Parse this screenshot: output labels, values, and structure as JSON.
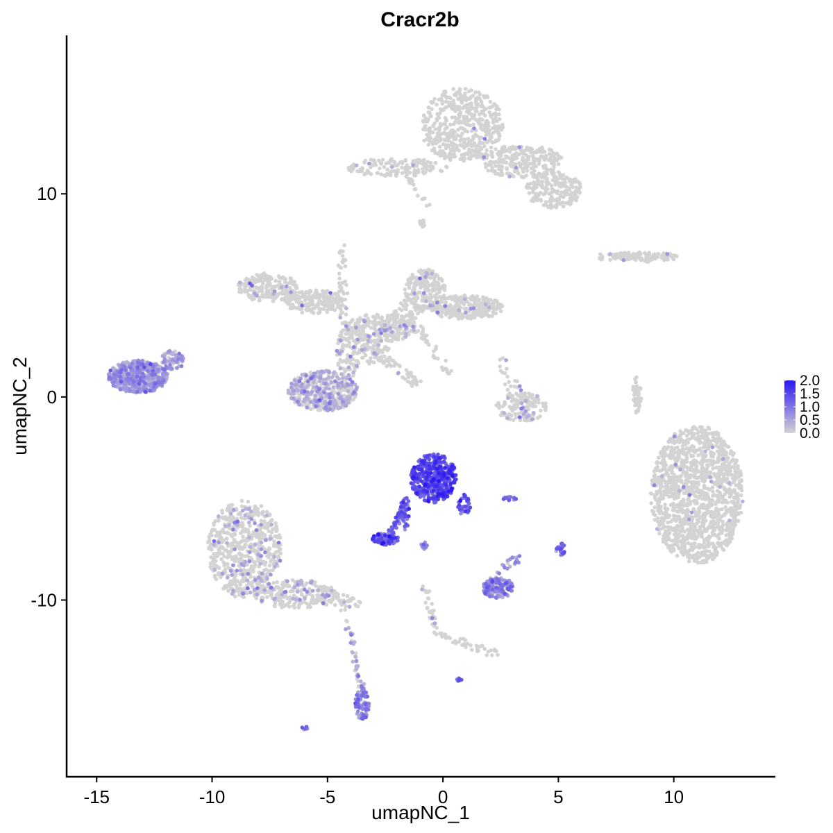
{
  "chart_data": {
    "type": "scatter",
    "title": "Cracr2b",
    "xlabel": "umapNC_1",
    "ylabel": "umapNC_2",
    "xlim": [
      -16.3,
      14.4
    ],
    "ylim": [
      -18.7,
      17.8
    ],
    "xticks": [
      -15,
      -10,
      -5,
      0,
      5,
      10
    ],
    "xtick_labels": [
      "-15",
      "-10",
      "-5",
      "0",
      "5",
      "10"
    ],
    "yticks": [
      -10,
      0,
      10
    ],
    "ytick_labels": [
      "-10",
      "0",
      "10"
    ],
    "grid": false,
    "legend": {
      "position": "right",
      "colors": {
        "low": "#d3d3d3",
        "high": "#2d18f0"
      },
      "range": [
        0,
        2.0
      ],
      "ticks": [
        0,
        0.5,
        1.0,
        1.5,
        2.0
      ],
      "labels": [
        "0.0",
        "0.5",
        "1.0",
        "1.5",
        "2.0"
      ]
    },
    "clusters": [
      {
        "cx": 11.0,
        "cy": -4.8,
        "rx": 2.0,
        "ry": 3.4,
        "n": 1400,
        "expr": 0.0,
        "pos": 0.01
      },
      {
        "cx": 0.8,
        "cy": 13.4,
        "rx": 1.8,
        "ry": 1.8,
        "n": 500,
        "expr": 0.0,
        "pos": 0.01
      },
      {
        "cx": 3.4,
        "cy": 11.6,
        "rx": 1.8,
        "ry": 0.8,
        "n": 260,
        "expr": 0.0,
        "pos": 0.01
      },
      {
        "cx": 4.8,
        "cy": 10.2,
        "rx": 1.2,
        "ry": 0.9,
        "n": 200,
        "expr": 0.0,
        "pos": 0.01
      },
      {
        "cx": -2.0,
        "cy": 11.3,
        "rx": 2.2,
        "ry": 0.45,
        "n": 150,
        "expr": 0.0,
        "pos": 0.02
      },
      {
        "cx": 8.7,
        "cy": 6.9,
        "rx": 1.5,
        "ry": 0.25,
        "n": 80,
        "expr": 0.0,
        "pos": 0.02
      },
      {
        "cx": -7.6,
        "cy": 5.4,
        "rx": 1.3,
        "ry": 0.7,
        "n": 200,
        "expr": 0.0,
        "pos": 0.06
      },
      {
        "cx": -5.6,
        "cy": 4.7,
        "rx": 1.3,
        "ry": 0.6,
        "n": 180,
        "expr": 0.0,
        "pos": 0.05
      },
      {
        "cx": -0.8,
        "cy": 5.3,
        "rx": 0.9,
        "ry": 1.0,
        "n": 200,
        "expr": 0.0,
        "pos": 0.05
      },
      {
        "cx": 1.0,
        "cy": 4.4,
        "rx": 1.6,
        "ry": 0.6,
        "n": 280,
        "expr": 0.0,
        "pos": 0.04
      },
      {
        "cx": -2.7,
        "cy": 3.4,
        "rx": 1.5,
        "ry": 0.7,
        "n": 220,
        "expr": 0.0,
        "pos": 0.06
      },
      {
        "cx": -4.1,
        "cy": 2.2,
        "rx": 0.5,
        "ry": 1.3,
        "n": 120,
        "expr": 0.0,
        "pos": 0.08
      },
      {
        "cx": -5.2,
        "cy": 0.3,
        "rx": 1.5,
        "ry": 1.0,
        "n": 450,
        "expr": 0.35,
        "pos": 0.45
      },
      {
        "cx": -13.2,
        "cy": 1.0,
        "rx": 1.3,
        "ry": 0.8,
        "n": 550,
        "expr": 0.55,
        "pos": 0.8
      },
      {
        "cx": -11.7,
        "cy": 1.8,
        "rx": 0.5,
        "ry": 0.5,
        "n": 60,
        "expr": 0.5,
        "pos": 0.75
      },
      {
        "cx": 3.4,
        "cy": -0.5,
        "rx": 1.1,
        "ry": 0.7,
        "n": 140,
        "expr": 0.0,
        "pos": 0.1
      },
      {
        "cx": 8.4,
        "cy": 0.1,
        "rx": 0.2,
        "ry": 1.0,
        "n": 45,
        "expr": 0.0,
        "pos": 0.0
      },
      {
        "cx": -8.6,
        "cy": -7.5,
        "rx": 1.6,
        "ry": 2.4,
        "n": 650,
        "expr": 0.0,
        "pos": 0.12
      },
      {
        "cx": -6.4,
        "cy": -9.7,
        "rx": 1.8,
        "ry": 0.7,
        "n": 220,
        "expr": 0.0,
        "pos": 0.1
      },
      {
        "cx": -0.4,
        "cy": -4.0,
        "rx": 1.0,
        "ry": 1.2,
        "n": 420,
        "expr": 1.4,
        "pos": 1.0
      },
      {
        "cx": 0.9,
        "cy": -5.3,
        "rx": 0.3,
        "ry": 0.5,
        "n": 40,
        "expr": 1.2,
        "pos": 1.0
      },
      {
        "cx": -2.5,
        "cy": -7.0,
        "rx": 0.6,
        "ry": 0.3,
        "n": 100,
        "expr": 1.2,
        "pos": 1.0
      },
      {
        "cx": -1.7,
        "cy": -5.8,
        "rx": 0.25,
        "ry": 0.8,
        "n": 40,
        "expr": 1.1,
        "pos": 1.0
      },
      {
        "cx": 2.4,
        "cy": -9.4,
        "rx": 0.7,
        "ry": 0.5,
        "n": 140,
        "expr": 0.75,
        "pos": 0.95
      },
      {
        "cx": -3.5,
        "cy": -15.1,
        "rx": 0.3,
        "ry": 0.8,
        "n": 70,
        "expr": 0.8,
        "pos": 0.95
      },
      {
        "cx": 5.1,
        "cy": -7.5,
        "rx": 0.2,
        "ry": 0.3,
        "n": 25,
        "expr": 1.0,
        "pos": 1.0
      },
      {
        "cx": 2.9,
        "cy": -5.0,
        "rx": 0.3,
        "ry": 0.1,
        "n": 15,
        "expr": 0.8,
        "pos": 1.0
      },
      {
        "cx": -0.8,
        "cy": -7.3,
        "rx": 0.2,
        "ry": 0.2,
        "n": 12,
        "expr": 0.9,
        "pos": 1.0
      },
      {
        "cx": 0.7,
        "cy": -13.9,
        "rx": 0.12,
        "ry": 0.12,
        "n": 8,
        "expr": 1.1,
        "pos": 1.0
      },
      {
        "cx": -6.0,
        "cy": -16.3,
        "rx": 0.15,
        "ry": 0.1,
        "n": 6,
        "expr": 1.0,
        "pos": 1.0
      }
    ],
    "paths": [
      {
        "from": [
          -1.2,
          4.6
        ],
        "to": [
          -3.4,
          1.8
        ],
        "n": 120,
        "w": 0.5,
        "expr": 0.0,
        "pos": 0.08
      },
      {
        "from": [
          -4.3,
          3.6
        ],
        "to": [
          -4.4,
          7.6
        ],
        "n": 50,
        "w": 0.2,
        "expr": 0.0,
        "pos": 0.03
      },
      {
        "from": [
          -3.6,
          2.9
        ],
        "to": [
          -1.1,
          0.6
        ],
        "n": 80,
        "w": 0.25,
        "expr": 0.0,
        "pos": 0.03
      },
      {
        "from": [
          -1.6,
          4.2
        ],
        "to": [
          0.4,
          1.0
        ],
        "n": 45,
        "w": 0.2,
        "expr": 0.0,
        "pos": 0.0
      },
      {
        "from": [
          -1.7,
          11.2
        ],
        "to": [
          -0.7,
          9.4
        ],
        "n": 20,
        "w": 0.15,
        "expr": 0.0,
        "pos": 0.0
      },
      {
        "from": [
          -0.9,
          8.7
        ],
        "to": [
          -0.9,
          8.2
        ],
        "n": 10,
        "w": 0.1,
        "expr": 0.0,
        "pos": 0.0
      },
      {
        "from": [
          -5.5,
          -9.6
        ],
        "to": [
          -3.7,
          -10.4
        ],
        "n": 60,
        "w": 0.4,
        "expr": 0.0,
        "pos": 0.15
      },
      {
        "from": [
          -4.2,
          -11.0
        ],
        "to": [
          -3.5,
          -14.3
        ],
        "n": 40,
        "w": 0.15,
        "expr": 0.3,
        "pos": 0.5
      },
      {
        "from": [
          -1.5,
          -5.0
        ],
        "to": [
          -2.3,
          -6.8
        ],
        "n": 40,
        "w": 0.15,
        "expr": 1.1,
        "pos": 1.0
      },
      {
        "from": [
          -0.8,
          -9.3
        ],
        "to": [
          -0.2,
          -11.8
        ],
        "n": 35,
        "w": 0.15,
        "expr": 0.0,
        "pos": 0.1
      },
      {
        "from": [
          -0.2,
          -11.7
        ],
        "to": [
          2.4,
          -12.7
        ],
        "n": 40,
        "w": 0.2,
        "expr": 0.0,
        "pos": 0.05
      },
      {
        "from": [
          2.0,
          -9.0
        ],
        "to": [
          3.4,
          -7.8
        ],
        "n": 25,
        "w": 0.2,
        "expr": 0.6,
        "pos": 0.9
      },
      {
        "from": [
          6.7,
          6.9
        ],
        "to": [
          10.0,
          6.9
        ],
        "n": 50,
        "w": 0.15,
        "expr": 0.0,
        "pos": 0.02
      },
      {
        "from": [
          2.5,
          1.9
        ],
        "to": [
          3.7,
          -1.2
        ],
        "n": 35,
        "w": 0.3,
        "expr": 0.0,
        "pos": 0.1
      }
    ]
  }
}
